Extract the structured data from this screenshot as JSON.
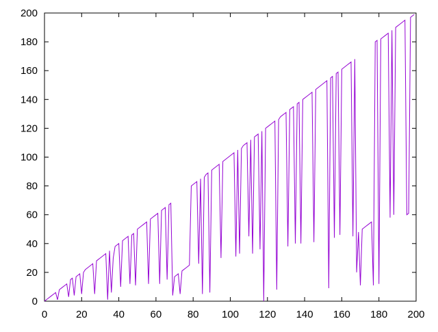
{
  "chart_data": {
    "type": "line",
    "x": [
      0,
      1,
      2,
      3,
      4,
      5,
      6,
      7,
      8,
      9,
      10,
      11,
      12,
      13,
      14,
      15,
      16,
      17,
      18,
      19,
      20,
      21,
      22,
      23,
      24,
      25,
      26,
      27,
      28,
      29,
      30,
      31,
      32,
      33,
      34,
      35,
      36,
      37,
      38,
      39,
      40,
      41,
      42,
      43,
      44,
      45,
      46,
      47,
      48,
      49,
      50,
      51,
      52,
      53,
      54,
      55,
      56,
      57,
      58,
      59,
      60,
      61,
      62,
      63,
      64,
      65,
      66,
      67,
      68,
      69,
      70,
      71,
      72,
      73,
      74,
      75,
      76,
      77,
      78,
      79,
      80,
      81,
      82,
      83,
      84,
      85,
      86,
      87,
      88,
      89,
      90,
      91,
      92,
      93,
      94,
      95,
      96,
      97,
      98,
      99,
      100,
      101,
      102,
      103,
      104,
      105,
      106,
      107,
      108,
      109,
      110,
      111,
      112,
      113,
      114,
      115,
      116,
      117,
      118,
      119,
      120,
      121,
      122,
      123,
      124,
      125,
      126,
      127,
      128,
      129,
      130,
      131,
      132,
      133,
      134,
      135,
      136,
      137,
      138,
      139,
      140,
      141,
      142,
      143,
      144,
      145,
      146,
      147,
      148,
      149,
      150,
      151,
      152,
      153,
      154,
      155,
      156,
      157,
      158,
      159,
      160,
      161,
      162,
      163,
      164,
      165,
      166,
      167,
      168,
      169,
      170,
      171,
      172,
      173,
      174,
      175,
      176,
      177,
      178,
      179,
      180,
      181,
      182,
      183,
      184,
      185,
      186,
      187,
      188,
      189,
      190,
      191,
      192,
      193,
      194,
      195,
      196,
      197,
      198,
      199
    ],
    "series": [
      {
        "color": "#9400d3",
        "values": [
          0,
          1,
          2,
          3,
          4,
          5,
          6,
          1,
          8,
          9,
          10,
          11,
          12,
          3,
          15,
          16,
          4,
          17,
          18,
          19,
          5,
          20,
          22,
          23,
          24,
          25,
          26,
          5,
          28,
          29,
          30,
          31,
          32,
          33,
          1,
          35,
          6,
          30,
          38,
          39,
          40,
          10,
          42,
          43,
          44,
          45,
          12,
          46,
          47,
          11,
          50,
          51,
          52,
          53,
          54,
          55,
          12,
          57,
          58,
          59,
          60,
          61,
          12,
          63,
          64,
          65,
          15,
          67,
          68,
          4,
          17,
          18,
          19,
          5,
          21,
          22,
          23,
          24,
          25,
          80,
          81,
          82,
          83,
          26,
          85,
          5,
          86,
          88,
          89,
          6,
          91,
          92,
          93,
          94,
          95,
          30,
          97,
          98,
          99,
          100,
          101,
          102,
          103,
          31,
          105,
          33,
          106,
          108,
          109,
          110,
          45,
          112,
          33,
          114,
          115,
          116,
          36,
          118,
          0,
          120,
          121,
          122,
          123,
          124,
          125,
          8,
          126,
          128,
          129,
          130,
          131,
          38,
          133,
          134,
          135,
          40,
          137,
          138,
          40,
          140,
          141,
          142,
          143,
          144,
          145,
          41,
          147,
          148,
          149,
          150,
          151,
          152,
          153,
          9,
          155,
          156,
          44,
          158,
          159,
          46,
          161,
          162,
          163,
          164,
          165,
          166,
          45,
          168,
          20,
          48,
          11,
          50,
          51,
          52,
          53,
          54,
          55,
          11,
          180,
          181,
          12,
          182,
          183,
          184,
          185,
          186,
          58,
          188,
          60,
          190,
          191,
          192,
          193,
          194,
          195,
          60,
          61,
          197,
          198,
          199
        ]
      }
    ],
    "xlim": [
      0,
      200
    ],
    "xticks": [
      0,
      20,
      40,
      60,
      80,
      100,
      120,
      140,
      160,
      180,
      200
    ],
    "ylim": [
      0,
      200
    ],
    "yticks": [
      0,
      20,
      40,
      60,
      80,
      100,
      120,
      140,
      160,
      180,
      200
    ]
  }
}
